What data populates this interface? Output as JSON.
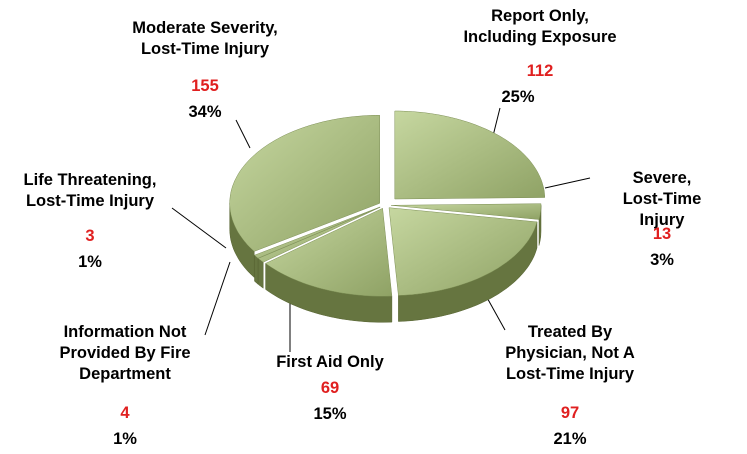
{
  "chart_data": {
    "type": "pie",
    "categories": [
      "Report Only,\nIncluding Exposure",
      "Severe, Lost-Time\nInjury",
      "Treated By\nPhysician, Not A\nLost-Time Injury",
      "First Aid Only",
      "Information Not\nProvided By Fire\nDepartment",
      "Life Threatening,\nLost-Time Injury",
      "Moderate Severity,\nLost-Time Injury"
    ],
    "values": [
      112,
      13,
      97,
      69,
      4,
      3,
      155
    ],
    "percent_labels": [
      "25%",
      "3%",
      "21%",
      "15%",
      "1%",
      "1%",
      "34%"
    ],
    "color": "#a8bd7c"
  }
}
